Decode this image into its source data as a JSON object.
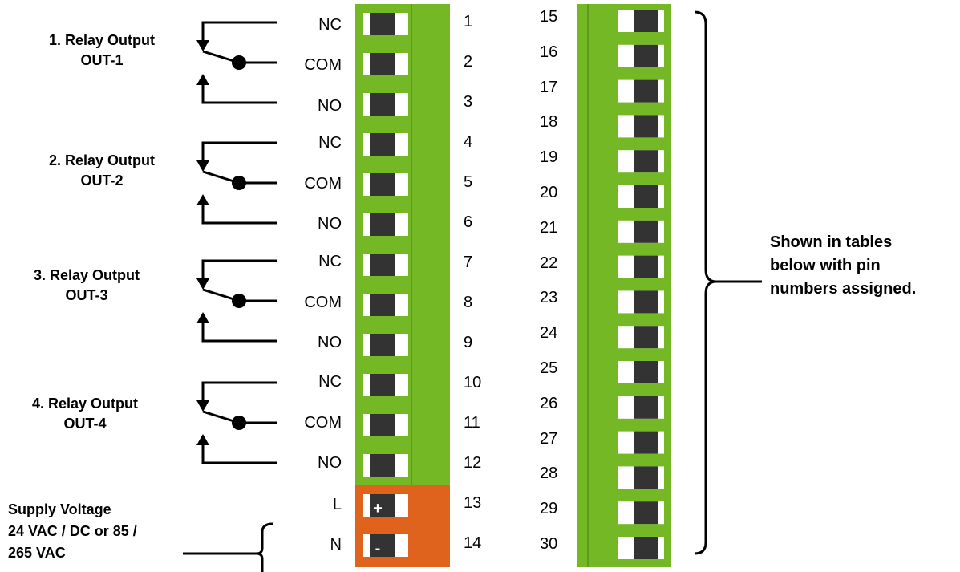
{
  "relays": [
    {
      "title_line1": "1. Relay Output",
      "title_line2": "OUT-1"
    },
    {
      "title_line1": "2. Relay Output",
      "title_line2": "OUT-2"
    },
    {
      "title_line1": "3. Relay Output",
      "title_line2": "OUT-3"
    },
    {
      "title_line1": "4. Relay Output",
      "title_line2": "OUT-4"
    }
  ],
  "contacts": [
    "NC",
    "COM",
    "NO",
    "NC",
    "COM",
    "NO",
    "NC",
    "COM",
    "NO",
    "NC",
    "COM",
    "NO",
    "L",
    "N"
  ],
  "left_pins": [
    "1",
    "2",
    "3",
    "4",
    "5",
    "6",
    "7",
    "8",
    "9",
    "10",
    "11",
    "12",
    "13",
    "14"
  ],
  "right_pins": [
    "15",
    "16",
    "17",
    "18",
    "19",
    "20",
    "21",
    "22",
    "23",
    "24",
    "25",
    "26",
    "27",
    "28",
    "29",
    "30"
  ],
  "supply": {
    "line1": "Supply Voltage",
    "line2": "24 VAC / DC or 85 /",
    "line3": "265 VAC",
    "plus": "+",
    "minus": "-"
  },
  "side_note": {
    "line1": "Shown in tables",
    "line2": "below with pin",
    "line3": "numbers assigned."
  },
  "colors": {
    "terminal_green": "#74b826",
    "terminal_orange": "#e0631d",
    "terminal_screw": "#333333",
    "slot_white": "#ffffff",
    "wire": "#000000"
  }
}
